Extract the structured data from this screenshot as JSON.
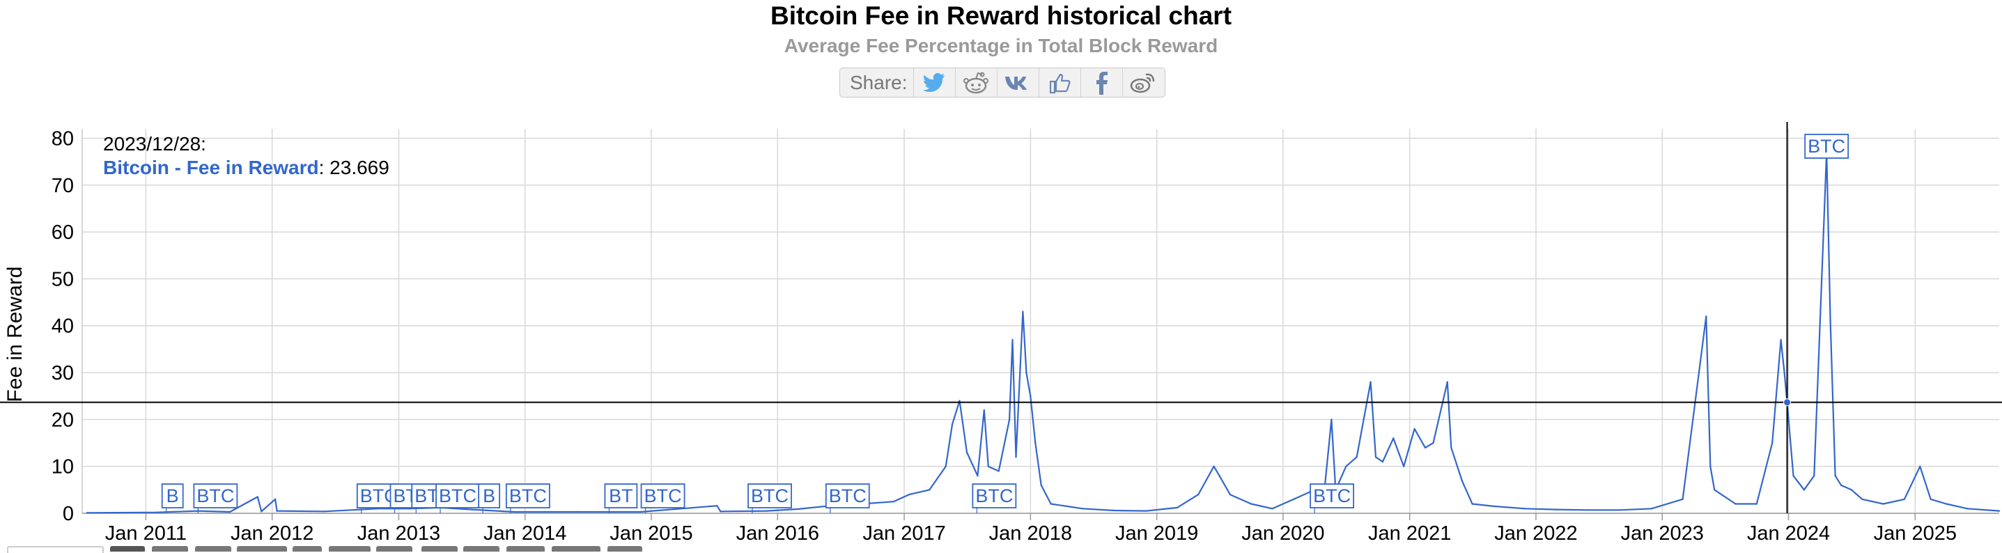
{
  "header": {
    "title": "Bitcoin Fee in Reward historical chart",
    "subtitle": "Average Fee Percentage in Total Block Reward",
    "share_label": "Share:",
    "share_icons": [
      "twitter-icon",
      "reddit-icon",
      "vk-icon",
      "like-icon",
      "facebook-icon",
      "weibo-icon"
    ]
  },
  "tooltip": {
    "date": "2023/12/28:",
    "series": "Bitcoin - Fee in Reward",
    "value": ": 23.669"
  },
  "chart_data": {
    "type": "line",
    "ylabel": "Fee in Reward",
    "ylim": [
      0,
      82
    ],
    "yticks": [
      0,
      10,
      20,
      30,
      40,
      50,
      60,
      70,
      80
    ],
    "xlim": [
      "2010-07",
      "2025-09"
    ],
    "xticks": [
      "Jan 2011",
      "Jan 2012",
      "Jan 2013",
      "Jan 2014",
      "Jan 2015",
      "Jan 2016",
      "Jan 2017",
      "Jan 2018",
      "Jan 2019",
      "Jan 2020",
      "Jan 2021",
      "Jan 2022",
      "Jan 2023",
      "Jan 2024",
      "Jan 2025"
    ],
    "grid": true,
    "color": "#3366cc",
    "series": [
      {
        "values": [
          [
            "2010-07-15",
            0.1
          ],
          [
            "2011-02-01",
            0.2
          ],
          [
            "2011-06-01",
            0.5
          ],
          [
            "2011-09-01",
            0.3
          ],
          [
            "2011-11-20",
            3.5
          ],
          [
            "2011-12-01",
            0.4
          ],
          [
            "2012-01-10",
            3.0
          ],
          [
            "2012-01-15",
            0.5
          ],
          [
            "2012-06-01",
            0.4
          ],
          [
            "2012-11-01",
            1.0
          ],
          [
            "2013-02-01",
            1.0
          ],
          [
            "2013-05-01",
            1.2
          ],
          [
            "2013-08-01",
            0.8
          ],
          [
            "2013-12-01",
            0.3
          ],
          [
            "2014-03-01",
            0.3
          ],
          [
            "2014-06-01",
            0.3
          ],
          [
            "2014-12-01",
            0.3
          ],
          [
            "2015-07-10",
            1.6
          ],
          [
            "2015-07-20",
            0.4
          ],
          [
            "2015-12-01",
            0.5
          ],
          [
            "2016-03-01",
            0.9
          ],
          [
            "2016-06-01",
            1.6
          ],
          [
            "2016-09-01",
            2.0
          ],
          [
            "2016-12-01",
            2.5
          ],
          [
            "2017-01-15",
            4.0
          ],
          [
            "2017-03-15",
            5.0
          ],
          [
            "2017-05-01",
            10.0
          ],
          [
            "2017-05-20",
            19.0
          ],
          [
            "2017-06-10",
            24.0
          ],
          [
            "2017-07-01",
            13.0
          ],
          [
            "2017-08-01",
            8.0
          ],
          [
            "2017-08-20",
            22.0
          ],
          [
            "2017-09-01",
            10.0
          ],
          [
            "2017-10-01",
            9.0
          ],
          [
            "2017-11-01",
            20.0
          ],
          [
            "2017-11-10",
            37.0
          ],
          [
            "2017-11-20",
            12.0
          ],
          [
            "2017-12-10",
            43.0
          ],
          [
            "2017-12-20",
            30.0
          ],
          [
            "2018-01-01",
            25.0
          ],
          [
            "2018-01-15",
            15.0
          ],
          [
            "2018-02-01",
            6.0
          ],
          [
            "2018-03-01",
            2.0
          ],
          [
            "2018-06-01",
            1.0
          ],
          [
            "2018-09-01",
            0.6
          ],
          [
            "2018-12-01",
            0.5
          ],
          [
            "2019-03-01",
            1.2
          ],
          [
            "2019-05-01",
            4.0
          ],
          [
            "2019-06-15",
            10.0
          ],
          [
            "2019-07-01",
            8.0
          ],
          [
            "2019-08-01",
            4.0
          ],
          [
            "2019-10-01",
            2.0
          ],
          [
            "2019-12-01",
            1.0
          ],
          [
            "2020-02-01",
            3.0
          ],
          [
            "2020-05-01",
            6.0
          ],
          [
            "2020-05-20",
            20.0
          ],
          [
            "2020-06-01",
            5.0
          ],
          [
            "2020-07-01",
            10.0
          ],
          [
            "2020-08-01",
            12.0
          ],
          [
            "2020-09-10",
            28.0
          ],
          [
            "2020-09-25",
            12.0
          ],
          [
            "2020-10-15",
            11.0
          ],
          [
            "2020-11-15",
            16.0
          ],
          [
            "2020-12-15",
            10.0
          ],
          [
            "2021-01-15",
            18.0
          ],
          [
            "2021-02-15",
            14.0
          ],
          [
            "2021-03-10",
            15.0
          ],
          [
            "2021-04-20",
            28.0
          ],
          [
            "2021-05-01",
            14.0
          ],
          [
            "2021-06-01",
            7.0
          ],
          [
            "2021-07-01",
            2.0
          ],
          [
            "2021-09-01",
            1.5
          ],
          [
            "2021-12-01",
            1.0
          ],
          [
            "2022-03-01",
            0.8
          ],
          [
            "2022-06-01",
            0.7
          ],
          [
            "2022-09-01",
            0.7
          ],
          [
            "2022-12-01",
            1.0
          ],
          [
            "2023-03-01",
            3.0
          ],
          [
            "2023-05-08",
            42.0
          ],
          [
            "2023-05-20",
            10.0
          ],
          [
            "2023-06-01",
            5.0
          ],
          [
            "2023-08-01",
            2.0
          ],
          [
            "2023-10-01",
            2.0
          ],
          [
            "2023-11-15",
            15.0
          ],
          [
            "2023-12-10",
            37.0
          ],
          [
            "2023-12-20",
            30.0
          ],
          [
            "2023-12-28",
            23.669
          ],
          [
            "2024-01-15",
            8.0
          ],
          [
            "2024-02-15",
            5.0
          ],
          [
            "2024-03-15",
            8.0
          ],
          [
            "2024-04-20",
            77.0
          ],
          [
            "2024-05-01",
            41.0
          ],
          [
            "2024-05-15",
            8.0
          ],
          [
            "2024-06-01",
            6.0
          ],
          [
            "2024-07-01",
            5.0
          ],
          [
            "2024-08-01",
            3.0
          ],
          [
            "2024-10-01",
            2.0
          ],
          [
            "2024-12-01",
            3.0
          ],
          [
            "2025-01-15",
            10.0
          ],
          [
            "2025-02-15",
            3.0
          ],
          [
            "2025-04-01",
            2.0
          ],
          [
            "2025-06-01",
            1.0
          ],
          [
            "2025-09-01",
            0.5
          ]
        ]
      }
    ],
    "flags": [
      {
        "date": "2011-03-01",
        "label": "B"
      },
      {
        "date": "2011-06-01",
        "label": "BTC"
      },
      {
        "date": "2012-09-15",
        "label": "BTC"
      },
      {
        "date": "2012-12-20",
        "label": "BTC"
      },
      {
        "date": "2013-02-20",
        "label": "BTC"
      },
      {
        "date": "2013-05-01",
        "label": "BTC"
      },
      {
        "date": "2013-09-01",
        "label": "B"
      },
      {
        "date": "2013-11-20",
        "label": "BTC"
      },
      {
        "date": "2014-09-01",
        "label": "BT"
      },
      {
        "date": "2014-12-15",
        "label": "BTC"
      },
      {
        "date": "2015-10-20",
        "label": "BTC"
      },
      {
        "date": "2016-06-01",
        "label": "BTC"
      },
      {
        "date": "2017-07-30",
        "label": "BTC"
      },
      {
        "date": "2020-04-01",
        "label": "BTC"
      },
      {
        "date": "2024-04-20",
        "label": "BTC"
      }
    ],
    "crosshair": {
      "x": "2023-12-28",
      "y": 23.669
    }
  }
}
